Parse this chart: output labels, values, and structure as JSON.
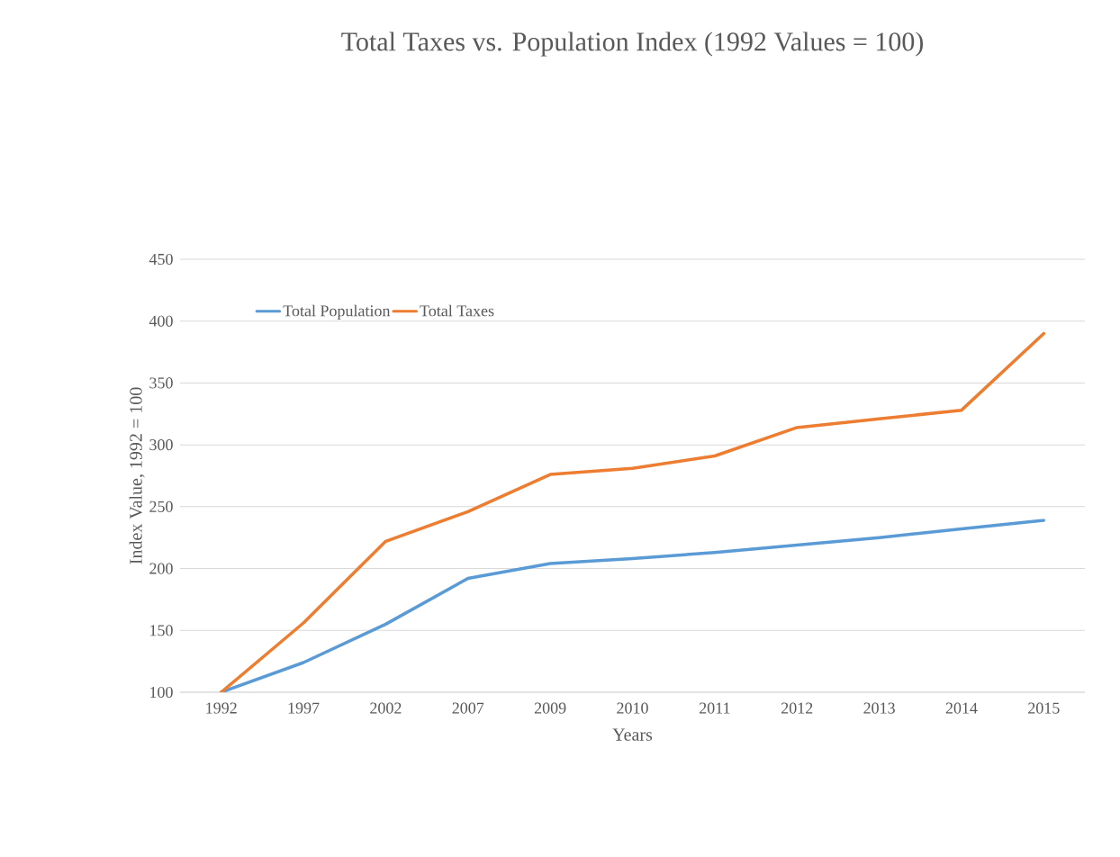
{
  "chart_data": {
    "type": "line",
    "title": "Total Taxes vs. Population Index (1992 Values = 100)",
    "xlabel": "Years",
    "ylabel": "Index Value, 1992 = 100",
    "categories": [
      "1992",
      "1997",
      "2002",
      "2007",
      "2009",
      "2010",
      "2011",
      "2012",
      "2013",
      "2014",
      "2015"
    ],
    "series": [
      {
        "name": "Total Population",
        "color": "#5b9bd5",
        "values": [
          100,
          124,
          155,
          192,
          204,
          208,
          213,
          219,
          225,
          232,
          239
        ]
      },
      {
        "name": "Total Taxes",
        "color": "#ed7d31",
        "values": [
          100,
          156,
          222,
          246,
          276,
          281,
          291,
          314,
          321,
          328,
          390
        ]
      }
    ],
    "ylim": [
      100,
      450
    ],
    "yticks": [
      100,
      150,
      200,
      250,
      300,
      350,
      400,
      450
    ],
    "grid": "y",
    "legend": "top left",
    "marker": "none",
    "line_style": "solid"
  }
}
